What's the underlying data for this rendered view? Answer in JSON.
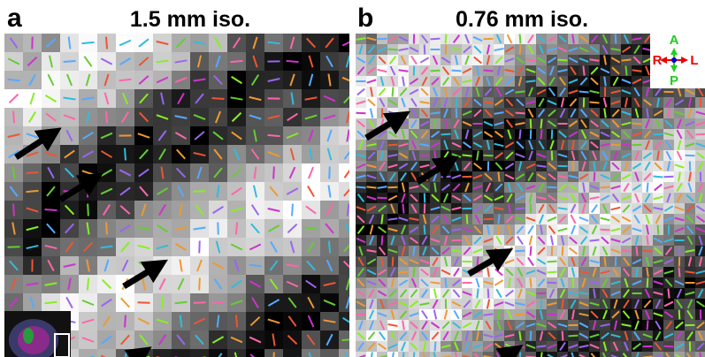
{
  "panels": [
    {
      "label": "a",
      "title": "1.5 mm iso."
    },
    {
      "label": "b",
      "title": "0.76 mm iso."
    }
  ],
  "orientation": {
    "anterior": "A",
    "right": "R",
    "left": "L",
    "posterior": "P"
  }
}
